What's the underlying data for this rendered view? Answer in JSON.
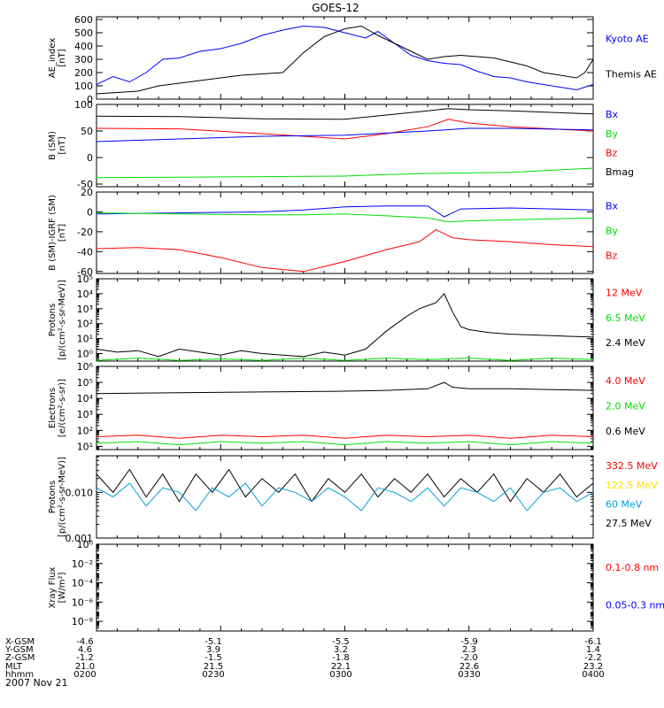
{
  "chart_data": {
    "title": "GOES-12",
    "x_ticks": [
      "0200",
      "0230",
      "0300",
      "0330",
      "0400"
    ],
    "footer": {
      "row_labels": [
        "X-GSM",
        "Y-GSM",
        "Z-GSM",
        "MLT",
        "hhmm"
      ],
      "columns": [
        [
          "-4.6",
          "4.6",
          "-1.2",
          "21.0",
          "0200"
        ],
        [
          "-5.1",
          "3.9",
          "-1.5",
          "21.5",
          "0230"
        ],
        [
          "-5.5",
          "3.2",
          "-1.8",
          "22.1",
          "0300"
        ],
        [
          "-5.9",
          "2.3",
          "-2.0",
          "22.6",
          "0330"
        ],
        [
          "-6.1",
          "1.4",
          "-2.2",
          "23.2",
          "0400"
        ]
      ],
      "date": "2007 Nov 21"
    },
    "colors": {
      "black": "#000000",
      "blue": "#0000ff",
      "red": "#ff0000",
      "green": "#00e000",
      "cyan": "#00a0e0",
      "yellow": "#ffe000"
    },
    "panels": [
      {
        "id": "ae",
        "type": "line",
        "scale": "linear",
        "ylabel": [
          "AE_index",
          "[nT]"
        ],
        "ylim": [
          0,
          620
        ],
        "ticks": [
          "0",
          "100",
          "200",
          "300",
          "400",
          "500",
          "600"
        ],
        "tick_values": [
          0,
          100,
          200,
          300,
          400,
          500,
          600
        ],
        "legend": [
          {
            "label": "Kyoto AE",
            "color": "#0000ff"
          },
          {
            "label": "Themis AE",
            "color": "#000000"
          }
        ],
        "series": [
          {
            "name": "Kyoto AE",
            "color": "#0000ff",
            "x": [
              0,
              4,
              8,
              12,
              16,
              20,
              25,
              30,
              35,
              40,
              45,
              50,
              55,
              60,
              65,
              68,
              72,
              76,
              80,
              84,
              88,
              92,
              96,
              100,
              104,
              108,
              112,
              116,
              120
            ],
            "y": [
              110,
              170,
              130,
              200,
              300,
              310,
              360,
              380,
              420,
              480,
              520,
              550,
              540,
              500,
              460,
              510,
              420,
              330,
              290,
              270,
              260,
              210,
              170,
              160,
              130,
              110,
              90,
              70,
              110
            ]
          },
          {
            "name": "Themis AE",
            "color": "#000000",
            "x": [
              0,
              5,
              10,
              15,
              20,
              25,
              30,
              35,
              40,
              45,
              50,
              55,
              60,
              64,
              68,
              72,
              76,
              80,
              84,
              88,
              92,
              96,
              100,
              104,
              108,
              112,
              116,
              118,
              120
            ],
            "y": [
              40,
              50,
              60,
              100,
              120,
              140,
              160,
              180,
              190,
              200,
              350,
              470,
              530,
              550,
              480,
              420,
              360,
              300,
              320,
              330,
              320,
              310,
              280,
              250,
              200,
              180,
              160,
              200,
              300
            ]
          }
        ]
      },
      {
        "id": "b_sm",
        "type": "line",
        "scale": "linear",
        "ylabel": [
          "B (SM)",
          "[nT]"
        ],
        "ylim": [
          -55,
          100
        ],
        "ticks": [
          "-50",
          "0",
          "50",
          "100"
        ],
        "tick_values": [
          -50,
          0,
          50,
          100
        ],
        "legend": [
          {
            "label": "Bx",
            "color": "#0000ff"
          },
          {
            "label": "By",
            "color": "#00e000"
          },
          {
            "label": "Bz",
            "color": "#ff0000"
          },
          {
            "label": "Bmag",
            "color": "#000000"
          }
        ],
        "series": [
          {
            "name": "Bmag",
            "color": "#000000",
            "x": [
              0,
              20,
              40,
              60,
              70,
              80,
              85,
              90,
              100,
              120
            ],
            "y": [
              78,
              77,
              73,
              72,
              80,
              88,
              92,
              90,
              88,
              82
            ]
          },
          {
            "name": "Bz",
            "color": "#ff0000",
            "x": [
              0,
              20,
              40,
              60,
              70,
              80,
              85,
              90,
              100,
              120
            ],
            "y": [
              55,
              54,
              45,
              35,
              45,
              58,
              72,
              65,
              58,
              50
            ]
          },
          {
            "name": "Bx",
            "color": "#0000ff",
            "x": [
              0,
              20,
              40,
              60,
              80,
              90,
              100,
              120
            ],
            "y": [
              30,
              35,
              40,
              42,
              50,
              55,
              55,
              52
            ]
          },
          {
            "name": "By",
            "color": "#00e000",
            "x": [
              0,
              20,
              40,
              60,
              70,
              80,
              100,
              120
            ],
            "y": [
              -38,
              -37,
              -36,
              -35,
              -32,
              -30,
              -28,
              -20
            ]
          }
        ]
      },
      {
        "id": "b_igrf",
        "type": "line",
        "scale": "linear",
        "ylabel": [
          "B (SM)-IGRF (SM)",
          "[nT]"
        ],
        "ylim": [
          -62,
          20
        ],
        "ticks": [
          "-60",
          "-40",
          "-20",
          "0",
          "20"
        ],
        "tick_values": [
          -60,
          -40,
          -20,
          0,
          20
        ],
        "legend": [
          {
            "label": "Bx",
            "color": "#0000ff"
          },
          {
            "label": "By",
            "color": "#00e000"
          },
          {
            "label": "Bz",
            "color": "#ff0000"
          }
        ],
        "series": [
          {
            "name": "Bx",
            "color": "#0000ff",
            "x": [
              0,
              20,
              40,
              50,
              60,
              70,
              80,
              84,
              88,
              100,
              120
            ],
            "y": [
              -2,
              -1,
              0,
              2,
              5,
              6,
              6,
              -5,
              3,
              4,
              2
            ]
          },
          {
            "name": "By",
            "color": "#00e000",
            "x": [
              0,
              20,
              40,
              50,
              60,
              70,
              80,
              85,
              90,
              100,
              120
            ],
            "y": [
              -1,
              -2,
              -3,
              -3,
              -2,
              -4,
              -6,
              -10,
              -9,
              -8,
              -6
            ]
          },
          {
            "name": "Bz",
            "color": "#ff0000",
            "x": [
              0,
              10,
              20,
              30,
              40,
              50,
              60,
              70,
              78,
              82,
              86,
              90,
              100,
              110,
              120
            ],
            "y": [
              -37,
              -36,
              -38,
              -46,
              -56,
              -60,
              -50,
              -38,
              -30,
              -18,
              -26,
              -28,
              -30,
              -33,
              -35
            ]
          }
        ]
      },
      {
        "id": "protons_low",
        "type": "line",
        "scale": "log",
        "ylabel": [
          "Protons",
          "[p/(cm²-s-sr-MeV)]"
        ],
        "ylim": [
          -0.5,
          5
        ],
        "ticks": [
          "10⁰",
          "10¹",
          "10²",
          "10³",
          "10⁴",
          "10⁵"
        ],
        "tick_values": [
          0,
          1,
          2,
          3,
          4,
          5
        ],
        "legend": [
          {
            "label": "12 MeV",
            "color": "#ff0000"
          },
          {
            "label": "6.5 MeV",
            "color": "#00e000"
          },
          {
            "label": "2.4 MeV",
            "color": "#000000"
          }
        ],
        "series": [
          {
            "name": "2.4 MeV",
            "color": "#000000",
            "x": [
              0,
              5,
              10,
              15,
              20,
              25,
              30,
              35,
              40,
              45,
              50,
              55,
              60,
              65,
              70,
              75,
              78,
              80,
              82,
              84,
              86,
              88,
              90,
              95,
              100,
              110,
              120
            ],
            "y": [
              0.3,
              0.1,
              0.2,
              -0.2,
              0.3,
              0.1,
              -0.1,
              0.2,
              0.0,
              -0.1,
              -0.2,
              0.1,
              -0.1,
              0.3,
              1.5,
              2.5,
              3.0,
              3.2,
              3.4,
              4.0,
              2.8,
              1.8,
              1.6,
              1.4,
              1.3,
              1.2,
              1.1
            ]
          },
          {
            "name": "6.5 MeV",
            "color": "#00e000",
            "x": [
              0,
              10,
              20,
              30,
              40,
              50,
              60,
              70,
              80,
              90,
              100,
              110,
              120
            ],
            "y": [
              -0.45,
              -0.3,
              -0.45,
              -0.35,
              -0.45,
              -0.3,
              -0.45,
              -0.3,
              -0.4,
              -0.3,
              -0.45,
              -0.3,
              -0.4
            ]
          }
        ]
      },
      {
        "id": "electrons",
        "type": "line",
        "scale": "log",
        "ylabel": [
          "Electrons",
          "[e/(cm²-s-sr)]"
        ],
        "ylim": [
          0.8,
          6
        ],
        "ticks": [
          "10¹",
          "10²",
          "10³",
          "10⁴",
          "10⁵",
          "10⁶"
        ],
        "tick_values": [
          1,
          2,
          3,
          4,
          5,
          6
        ],
        "legend": [
          {
            "label": "4.0 MeV",
            "color": "#ff0000"
          },
          {
            "label": "2.0 MeV",
            "color": "#00e000"
          },
          {
            "label": "0.6 MeV",
            "color": "#000000"
          }
        ],
        "series": [
          {
            "name": "0.6 MeV",
            "color": "#000000",
            "x": [
              0,
              20,
              40,
              60,
              70,
              80,
              84,
              86,
              90,
              100,
              120
            ],
            "y": [
              4.3,
              4.35,
              4.4,
              4.45,
              4.5,
              4.6,
              5.0,
              4.7,
              4.6,
              4.6,
              4.5
            ]
          },
          {
            "name": "4.0 MeV",
            "color": "#ff0000",
            "x": [
              0,
              10,
              20,
              30,
              40,
              50,
              60,
              70,
              80,
              90,
              100,
              110,
              120
            ],
            "y": [
              1.6,
              1.7,
              1.5,
              1.7,
              1.6,
              1.7,
              1.5,
              1.7,
              1.6,
              1.7,
              1.5,
              1.7,
              1.6
            ]
          },
          {
            "name": "2.0 MeV",
            "color": "#00e000",
            "x": [
              0,
              10,
              20,
              30,
              40,
              50,
              60,
              70,
              80,
              90,
              100,
              110,
              120
            ],
            "y": [
              1.2,
              1.3,
              1.1,
              1.3,
              1.2,
              1.3,
              1.1,
              1.3,
              1.2,
              1.3,
              1.1,
              1.3,
              1.2
            ]
          }
        ]
      },
      {
        "id": "protons_high",
        "type": "line",
        "scale": "log",
        "ylabel": [
          "Protons",
          "[p/(cm²-s-sr-MeV)]"
        ],
        "ylim": [
          -3,
          -1.2
        ],
        "ticks": [
          "0.001",
          "0.010"
        ],
        "tick_values": [
          -3,
          -2
        ],
        "legend": [
          {
            "label": "332.5 MeV",
            "color": "#ff0000"
          },
          {
            "label": "122.5 MeV",
            "color": "#ffe000"
          },
          {
            "label": "60 MeV",
            "color": "#00a0e0"
          },
          {
            "label": "27.5 MeV",
            "color": "#000000"
          }
        ],
        "series": [
          {
            "name": "27.5 MeV",
            "color": "#000000",
            "x": [
              0,
              4,
              8,
              12,
              16,
              20,
              24,
              28,
              32,
              36,
              40,
              44,
              48,
              52,
              56,
              60,
              64,
              68,
              72,
              76,
              80,
              84,
              88,
              92,
              96,
              100,
              104,
              108,
              112,
              116,
              120
            ],
            "y": [
              -1.6,
              -2.0,
              -1.5,
              -2.1,
              -1.6,
              -2.2,
              -1.6,
              -2.0,
              -1.5,
              -2.1,
              -1.7,
              -2.0,
              -1.6,
              -2.2,
              -1.7,
              -2.0,
              -1.6,
              -2.1,
              -1.7,
              -2.0,
              -1.6,
              -2.1,
              -1.7,
              -2.0,
              -1.6,
              -2.2,
              -1.7,
              -2.0,
              -1.6,
              -2.1,
              -1.8
            ]
          },
          {
            "name": "60 MeV",
            "color": "#00a0e0",
            "x": [
              0,
              4,
              8,
              12,
              16,
              20,
              24,
              28,
              32,
              36,
              40,
              44,
              48,
              52,
              56,
              60,
              64,
              68,
              72,
              76,
              80,
              84,
              88,
              92,
              96,
              100,
              104,
              108,
              112,
              116,
              120
            ],
            "y": [
              -1.9,
              -2.1,
              -1.8,
              -2.3,
              -1.9,
              -2.0,
              -2.4,
              -1.9,
              -2.1,
              -1.8,
              -2.3,
              -1.9,
              -2.0,
              -2.2,
              -1.9,
              -2.1,
              -2.4,
              -1.9,
              -2.0,
              -2.2,
              -1.9,
              -2.3,
              -1.9,
              -2.0,
              -2.2,
              -1.9,
              -2.4,
              -2.0,
              -1.9,
              -2.2,
              -2.0
            ]
          }
        ]
      },
      {
        "id": "xray",
        "type": "line",
        "scale": "log",
        "ylabel": [
          "Xray Flux",
          "[W/m²]"
        ],
        "ylim": [
          -9,
          0
        ],
        "ticks": [
          "10⁻⁸",
          "10⁻⁶",
          "10⁻⁴",
          "10⁻²",
          "10⁰"
        ],
        "tick_values": [
          -8,
          -6,
          -4,
          -2,
          0
        ],
        "legend": [
          {
            "label": "0.1-0.8 nm",
            "color": "#ff0000"
          },
          {
            "label": "0.05-0.3 nm",
            "color": "#0000ff"
          }
        ],
        "series": []
      }
    ]
  }
}
